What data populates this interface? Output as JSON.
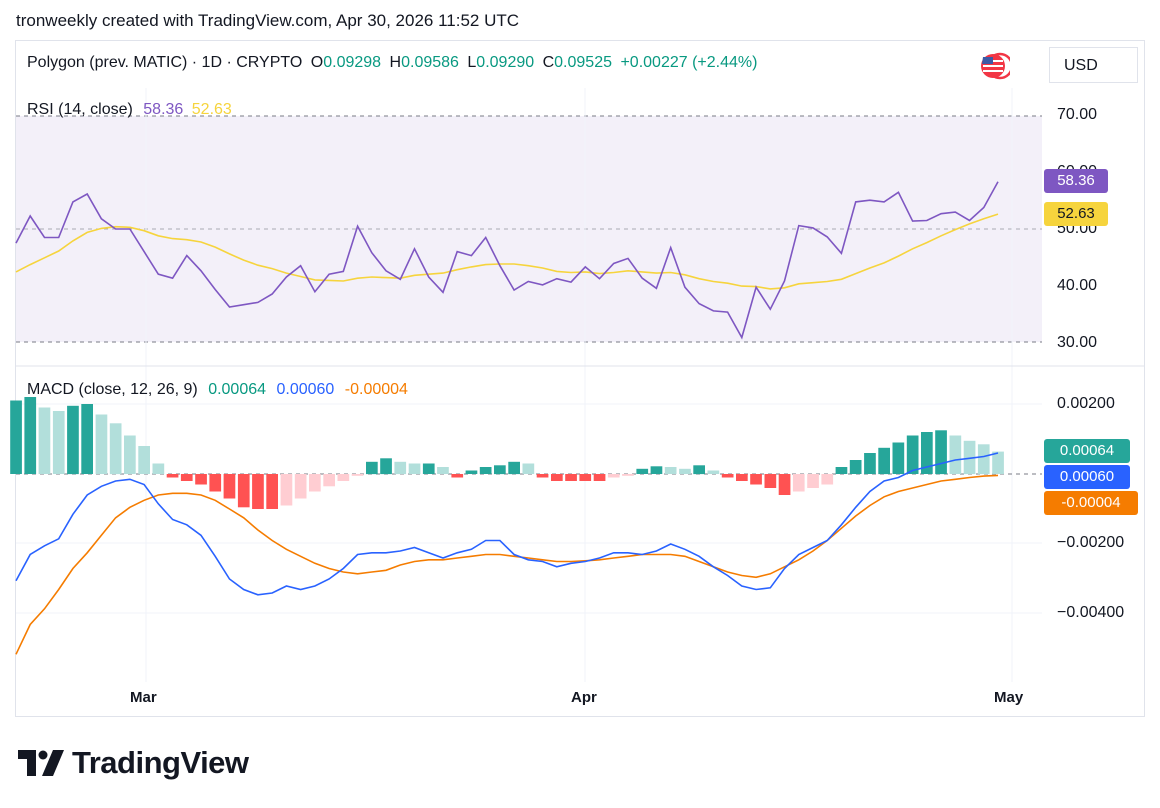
{
  "caption": "tronweekly created with TradingView.com, Apr 30, 2026 11:52 UTC",
  "symbol": {
    "name": "Polygon (prev. MATIC) · 1D · CRYPTO",
    "open_label": "O",
    "open": "0.09298",
    "high_label": "H",
    "high": "0.09586",
    "low_label": "L",
    "low": "0.09290",
    "close_label": "C",
    "close": "0.09525",
    "change": "+0.00227 (+2.44%)"
  },
  "currency": "USD",
  "colors": {
    "up": "#089981",
    "down": "#f23645",
    "rsi": "#7e57c2",
    "rsi_ma": "#f6d43d",
    "macd": "#2962ff",
    "signal": "#f57c00",
    "hist_up_strong": "#26a69a",
    "hist_up_weak": "#b2dfdb",
    "hist_down_strong": "#ff5252",
    "hist_down_weak": "#ffcdd2"
  },
  "rsi": {
    "title": "RSI (14, close)",
    "value": "58.36",
    "ma_value": "52.63",
    "ticks": [
      "70.00",
      "60.00",
      "50.00",
      "40.00",
      "30.00"
    ]
  },
  "macd": {
    "title": "MACD (close, 12, 26, 9)",
    "hist_value": "0.00064",
    "macd_value": "0.00060",
    "signal_value": "-0.00004",
    "badge_hist": "0.00064",
    "badge_macd": "0.00060",
    "badge_signal": "-0.00004",
    "ticks": [
      "0.00200",
      "−0.00200",
      "−0.00400"
    ]
  },
  "time_axis": [
    "Mar",
    "Apr",
    "May"
  ],
  "branding": "TradingView",
  "chart_data": [
    {
      "type": "line",
      "title": "RSI (14, close)",
      "ylim": [
        30,
        70
      ],
      "series": [
        {
          "name": "RSI",
          "values": [
            47.5,
            52.3,
            48.5,
            48.5,
            54.8,
            56.2,
            51.8,
            50.0,
            50.0,
            46.0,
            42.0,
            41.3,
            45.3,
            42.6,
            39.3,
            36.2,
            36.6,
            37.0,
            38.5,
            41.5,
            43.5,
            38.9,
            42.0,
            42.5,
            50.5,
            45.8,
            42.6,
            41.1,
            46.5,
            41.5,
            38.8,
            46.0,
            45.3,
            48.5,
            43.5,
            39.2,
            40.7,
            40.1,
            41.2,
            40.6,
            43.3,
            41.2,
            43.9,
            44.8,
            41.3,
            39.5,
            46.7,
            39.7,
            36.8,
            35.5,
            35.3,
            30.8,
            39.7,
            35.8,
            40.8,
            50.6,
            50.2,
            48.6,
            45.7,
            54.8,
            55.1,
            54.8,
            56.5,
            51.4,
            51.5,
            52.7,
            53.0,
            51.5,
            53.8,
            58.36
          ]
        },
        {
          "name": "RSI-based MA",
          "values": [
            42.4,
            43.7,
            44.9,
            46.1,
            47.9,
            49.4,
            50.1,
            50.4,
            50.3,
            49.7,
            48.8,
            48.3,
            48.1,
            47.7,
            46.8,
            45.6,
            44.5,
            43.6,
            43.0,
            42.2,
            41.6,
            41.0,
            40.9,
            40.8,
            41.3,
            41.5,
            41.4,
            41.3,
            41.8,
            42.0,
            42.2,
            42.8,
            43.3,
            43.7,
            43.8,
            43.8,
            43.5,
            43.1,
            42.5,
            42.3,
            42.4,
            42.1,
            42.3,
            42.6,
            42.4,
            42.2,
            42.3,
            41.9,
            41.2,
            40.7,
            40.4,
            39.9,
            39.8,
            39.4,
            39.6,
            40.3,
            40.5,
            40.7,
            41.1,
            42.1,
            43.1,
            44.0,
            45.2,
            46.5,
            47.6,
            48.8,
            49.9,
            50.9,
            51.8,
            52.63
          ]
        }
      ]
    },
    {
      "type": "bar",
      "title": "MACD (close, 12, 26, 9)",
      "ylim": [
        -0.005,
        0.0025
      ],
      "series": [
        {
          "name": "Histogram",
          "values": [
            0.0021,
            0.0022,
            0.0019,
            0.0018,
            0.00195,
            0.002,
            0.0017,
            0.00145,
            0.0011,
            0.0008,
            0.0003,
            -0.0001,
            -0.0002,
            -0.0003,
            -0.0005,
            -0.0007,
            -0.00095,
            -0.001,
            -0.001,
            -0.0009,
            -0.0007,
            -0.0005,
            -0.00035,
            -0.0002,
            -5e-05,
            0.00035,
            0.00045,
            0.00035,
            0.0003,
            0.0003,
            0.0002,
            -0.0001,
            0.0001,
            0.0002,
            0.00025,
            0.00035,
            0.0003,
            -0.0001,
            -0.0002,
            -0.0002,
            -0.0002,
            -0.0002,
            -0.0001,
            -5e-05,
            0.00015,
            0.00022,
            0.0002,
            0.00015,
            0.00025,
            0.0001,
            -0.0001,
            -0.0002,
            -0.0003,
            -0.0004,
            -0.0006,
            -0.0005,
            -0.0004,
            -0.0003,
            0.0002,
            0.0004,
            0.0006,
            0.00075,
            0.0009,
            0.0011,
            0.0012,
            0.00125,
            0.0011,
            0.00095,
            0.00085,
            0.00064
          ]
        },
        {
          "name": "MACD",
          "values": [
            -0.00305,
            -0.0023,
            -0.00205,
            -0.00185,
            -0.00115,
            -0.0006,
            -0.00035,
            -0.0002,
            -0.00015,
            -0.0003,
            -0.00085,
            -0.0013,
            -0.00145,
            -0.00175,
            -0.00235,
            -0.003,
            -0.0033,
            -0.00345,
            -0.0034,
            -0.0032,
            -0.0033,
            -0.0032,
            -0.003,
            -0.0027,
            -0.0023,
            -0.00225,
            -0.00225,
            -0.0022,
            -0.0021,
            -0.00225,
            -0.0024,
            -0.00225,
            -0.00215,
            -0.0019,
            -0.0019,
            -0.0023,
            -0.00245,
            -0.0025,
            -0.00265,
            -0.00255,
            -0.0025,
            -0.0024,
            -0.00225,
            -0.00225,
            -0.0023,
            -0.0022,
            -0.002,
            -0.00215,
            -0.00235,
            -0.00265,
            -0.0029,
            -0.0032,
            -0.0033,
            -0.00325,
            -0.0027,
            -0.0023,
            -0.0021,
            -0.0019,
            -0.00145,
            -0.00095,
            -0.0005,
            -0.0002,
            -0.0001,
            0.0001,
            0.0002,
            0.0003,
            0.0004,
            0.00045,
            0.0005,
            0.0006
          ]
        },
        {
          "name": "Signal",
          "values": [
            -0.00515,
            -0.0043,
            -0.00385,
            -0.0033,
            -0.0027,
            -0.00225,
            -0.00175,
            -0.00125,
            -0.00095,
            -0.00075,
            -0.0006,
            -0.00055,
            -0.00055,
            -0.0006,
            -0.00075,
            -0.001,
            -0.00125,
            -0.0016,
            -0.0019,
            -0.00215,
            -0.00235,
            -0.00255,
            -0.0027,
            -0.0028,
            -0.00285,
            -0.0028,
            -0.00275,
            -0.0026,
            -0.0025,
            -0.00245,
            -0.00245,
            -0.0024,
            -0.00235,
            -0.0023,
            -0.0023,
            -0.00235,
            -0.0024,
            -0.00245,
            -0.0025,
            -0.0025,
            -0.00248,
            -0.00245,
            -0.0024,
            -0.00235,
            -0.0023,
            -0.0023,
            -0.0023,
            -0.00235,
            -0.0025,
            -0.00265,
            -0.0028,
            -0.0029,
            -0.00295,
            -0.00285,
            -0.00265,
            -0.00245,
            -0.0022,
            -0.0019,
            -0.00155,
            -0.0012,
            -0.0009,
            -0.00065,
            -0.0005,
            -0.0004,
            -0.0003,
            -0.0002,
            -0.00015,
            -0.0001,
            -6e-05,
            -4e-05
          ]
        }
      ]
    }
  ]
}
